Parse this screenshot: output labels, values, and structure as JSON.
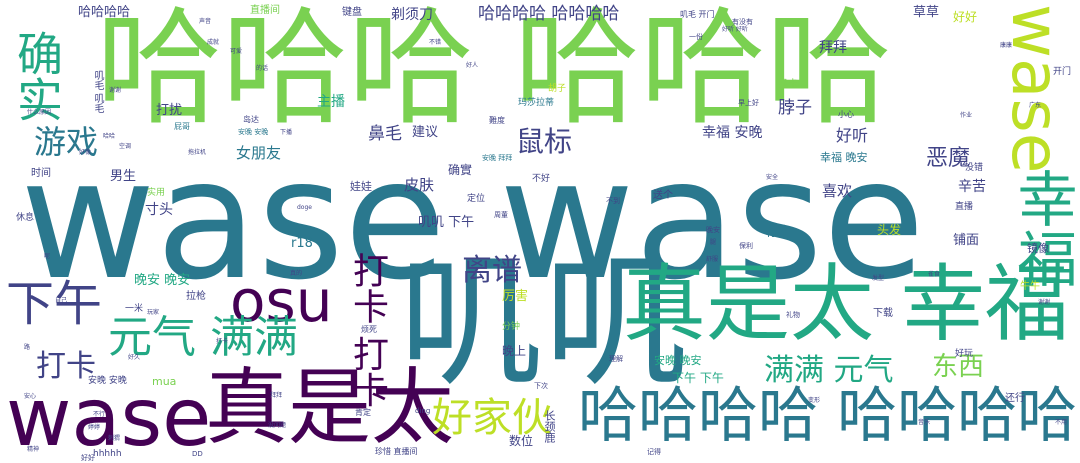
{
  "palette": {
    "yellow": "#bddf26",
    "lime": "#7ad151",
    "green": "#22a884",
    "teal": "#2a788e",
    "blue": "#414487",
    "purple": "#440154",
    "light": "#c8e37e"
  },
  "words": [
    {
      "text": "wase wase",
      "color": "teal"
    },
    {
      "text": "哈哈哈 哈哈哈",
      "color": "lime"
    },
    {
      "text": "叽叽",
      "color": "teal"
    },
    {
      "text": "真是太 幸福",
      "color": "green"
    },
    {
      "text": "wase",
      "color": "purple"
    },
    {
      "text": "真是太",
      "color": "purple"
    },
    {
      "text": "哈哈哈哈 哈哈哈哈",
      "color": "teal"
    },
    {
      "text": "wase",
      "color": "yellow"
    },
    {
      "text": "幸福",
      "color": "green"
    },
    {
      "text": "osu",
      "color": "purple"
    },
    {
      "text": "确实",
      "color": "green"
    },
    {
      "text": "下午",
      "color": "blue"
    },
    {
      "text": "元气 满满",
      "color": "green"
    },
    {
      "text": "好家伙",
      "color": "yellow"
    },
    {
      "text": "打卡 打卡",
      "color": "purple"
    },
    {
      "text": "满满 元气",
      "color": "green"
    },
    {
      "text": "离谱",
      "color": "blue"
    },
    {
      "text": "游戏",
      "color": "teal"
    },
    {
      "text": "鼠标",
      "color": "blue"
    },
    {
      "text": "打卡",
      "color": "blue"
    },
    {
      "text": "东西",
      "color": "lime"
    },
    {
      "text": "哈哈哈哈 哈哈哈哈",
      "color": "blue"
    },
    {
      "text": "哈哈哈哈",
      "color": "blue"
    },
    {
      "text": "恶魔",
      "color": "blue"
    },
    {
      "text": "好听",
      "color": "blue"
    },
    {
      "text": "女朋友",
      "color": "teal"
    },
    {
      "text": "鼻毛",
      "color": "blue"
    },
    {
      "text": "建议",
      "color": "blue"
    },
    {
      "text": "脖子",
      "color": "blue"
    },
    {
      "text": "幸福 安晚",
      "color": "blue"
    },
    {
      "text": "主播",
      "color": "green"
    },
    {
      "text": "剃须刀",
      "color": "blue"
    },
    {
      "text": "拜拜",
      "color": "blue"
    },
    {
      "text": "草草",
      "color": "blue"
    },
    {
      "text": "好好",
      "color": "yellow"
    },
    {
      "text": "皮肤",
      "color": "blue"
    },
    {
      "text": "喜欢",
      "color": "blue"
    },
    {
      "text": "辛苦",
      "color": "blue"
    },
    {
      "text": "叽叽 下午",
      "color": "blue"
    },
    {
      "text": "晚安 晚安",
      "color": "green"
    },
    {
      "text": "男生",
      "color": "blue"
    },
    {
      "text": "寸头",
      "color": "blue"
    },
    {
      "text": "打扰",
      "color": "blue"
    },
    {
      "text": "停车",
      "color": "teal"
    },
    {
      "text": "铺面",
      "color": "blue"
    },
    {
      "text": "头发",
      "color": "yellow"
    },
    {
      "text": "厉害",
      "color": "yellow"
    },
    {
      "text": "娃娃",
      "color": "blue"
    },
    {
      "text": "确實",
      "color": "blue"
    },
    {
      "text": "r18",
      "color": "teal"
    },
    {
      "text": "镜像",
      "color": "blue"
    },
    {
      "text": "晚上",
      "color": "blue"
    },
    {
      "text": "下午 下午",
      "color": "green"
    },
    {
      "text": "安晚 晚安",
      "color": "green"
    },
    {
      "text": "数位",
      "color": "blue"
    },
    {
      "text": "拉枪",
      "color": "blue"
    },
    {
      "text": "mua",
      "color": "lime"
    },
    {
      "text": "时间",
      "color": "blue"
    },
    {
      "text": "直播间",
      "color": "lime"
    },
    {
      "text": "键盘",
      "color": "blue"
    },
    {
      "text": "显卡",
      "color": "lime"
    },
    {
      "text": "幸福 晚安",
      "color": "teal"
    },
    {
      "text": "长颈鹿",
      "color": "blue"
    },
    {
      "text": "叽毛 叽毛",
      "color": "blue"
    },
    {
      "text": "安晚 安晚",
      "color": "blue"
    },
    {
      "text": "hhhhh",
      "color": "blue"
    },
    {
      "text": "下载",
      "color": "blue"
    },
    {
      "text": "牛牛",
      "color": "yellow"
    },
    {
      "text": "还行",
      "color": "blue"
    },
    {
      "text": "开门",
      "color": "blue"
    },
    {
      "text": "送个",
      "color": "blue"
    },
    {
      "text": "定位",
      "color": "blue"
    },
    {
      "text": "休息",
      "color": "blue"
    },
    {
      "text": "珍惜 直播间",
      "color": "blue"
    },
    {
      "text": "没错",
      "color": "blue"
    },
    {
      "text": "一米",
      "color": "blue"
    },
    {
      "text": "直播",
      "color": "blue"
    },
    {
      "text": "好玩",
      "color": "blue"
    },
    {
      "text": "肯定",
      "color": "blue"
    },
    {
      "text": "分钟",
      "color": "lime"
    },
    {
      "text": "实用",
      "color": "lime"
    },
    {
      "text": "烦死",
      "color": "blue"
    },
    {
      "text": "岛达",
      "color": "blue"
    },
    {
      "text": "小心",
      "color": "blue"
    },
    {
      "text": "不好",
      "color": "blue"
    },
    {
      "text": "叽毛 开门",
      "color": "blue"
    },
    {
      "text": "有没有",
      "color": "blue"
    },
    {
      "text": "玛莎拉蒂",
      "color": "teal"
    },
    {
      "text": "胡子",
      "color": "yellow"
    },
    {
      "text": "難度",
      "color": "blue"
    },
    {
      "text": "早上好",
      "color": "blue"
    },
    {
      "text": "安晚 拜拜",
      "color": "teal"
    },
    {
      "text": "不到",
      "color": "blue"
    },
    {
      "text": "保利",
      "color": "blue"
    },
    {
      "text": "理解",
      "color": "blue"
    },
    {
      "text": "下次",
      "color": "blue"
    },
    {
      "text": "记得",
      "color": "blue"
    },
    {
      "text": "DD",
      "color": "blue"
    },
    {
      "text": "ding",
      "color": "blue"
    },
    {
      "text": "好好",
      "color": "blue"
    },
    {
      "text": "周董",
      "color": "blue"
    },
    {
      "text": "晚安",
      "color": "blue"
    },
    {
      "text": "不错",
      "color": "blue"
    },
    {
      "text": "一份",
      "color": "blue"
    },
    {
      "text": "礼物",
      "color": "blue"
    },
    {
      "text": "安晚 安晚",
      "color": "teal"
    },
    {
      "text": "doge",
      "color": "blue"
    },
    {
      "text": "声音",
      "color": "blue"
    },
    {
      "text": "可爱",
      "color": "blue"
    },
    {
      "text": "成就",
      "color": "blue"
    },
    {
      "text": "好听 好听",
      "color": "blue"
    },
    {
      "text": "什么原因",
      "color": "blue"
    },
    {
      "text": "屁哥",
      "color": "teal"
    },
    {
      "text": "作业",
      "color": "blue"
    },
    {
      "text": "康康",
      "color": "blue"
    },
    {
      "text": "广东",
      "color": "blue"
    },
    {
      "text": "的话",
      "color": "blue"
    },
    {
      "text": "好人",
      "color": "blue"
    },
    {
      "text": "下播",
      "color": "blue"
    },
    {
      "text": "雀食",
      "color": "blue"
    },
    {
      "text": "安全",
      "color": "blue"
    },
    {
      "text": "舒服",
      "color": "blue"
    },
    {
      "text": "变形",
      "color": "blue"
    },
    {
      "text": "打卡",
      "color": "blue"
    },
    {
      "text": "没问题",
      "color": "blue"
    },
    {
      "text": "不用",
      "color": "blue"
    },
    {
      "text": "婷婷",
      "color": "blue"
    },
    {
      "text": "腿",
      "color": "blue"
    },
    {
      "text": "玩家",
      "color": "blue"
    },
    {
      "text": "自己",
      "color": "blue"
    },
    {
      "text": "真的",
      "color": "blue"
    },
    {
      "text": "发型",
      "color": "blue"
    },
    {
      "text": "哈哈",
      "color": "blue"
    },
    {
      "text": "空调",
      "color": "blue"
    },
    {
      "text": "音乐",
      "color": "blue"
    },
    {
      "text": "安心",
      "color": "blue"
    },
    {
      "text": "拜拜",
      "color": "blue"
    },
    {
      "text": "刺猬",
      "color": "blue"
    },
    {
      "text": "路",
      "color": "blue"
    },
    {
      "text": "精神",
      "color": "blue"
    },
    {
      "text": "好久",
      "color": "blue"
    },
    {
      "text": "谢谢",
      "color": "blue"
    },
    {
      "text": "拖拉机",
      "color": "blue"
    },
    {
      "text": "谢谢",
      "color": "blue"
    },
    {
      "text": "呢",
      "color": "blue"
    },
    {
      "text": "好像",
      "color": "blue"
    },
    {
      "text": "不行",
      "color": "blue"
    }
  ]
}
